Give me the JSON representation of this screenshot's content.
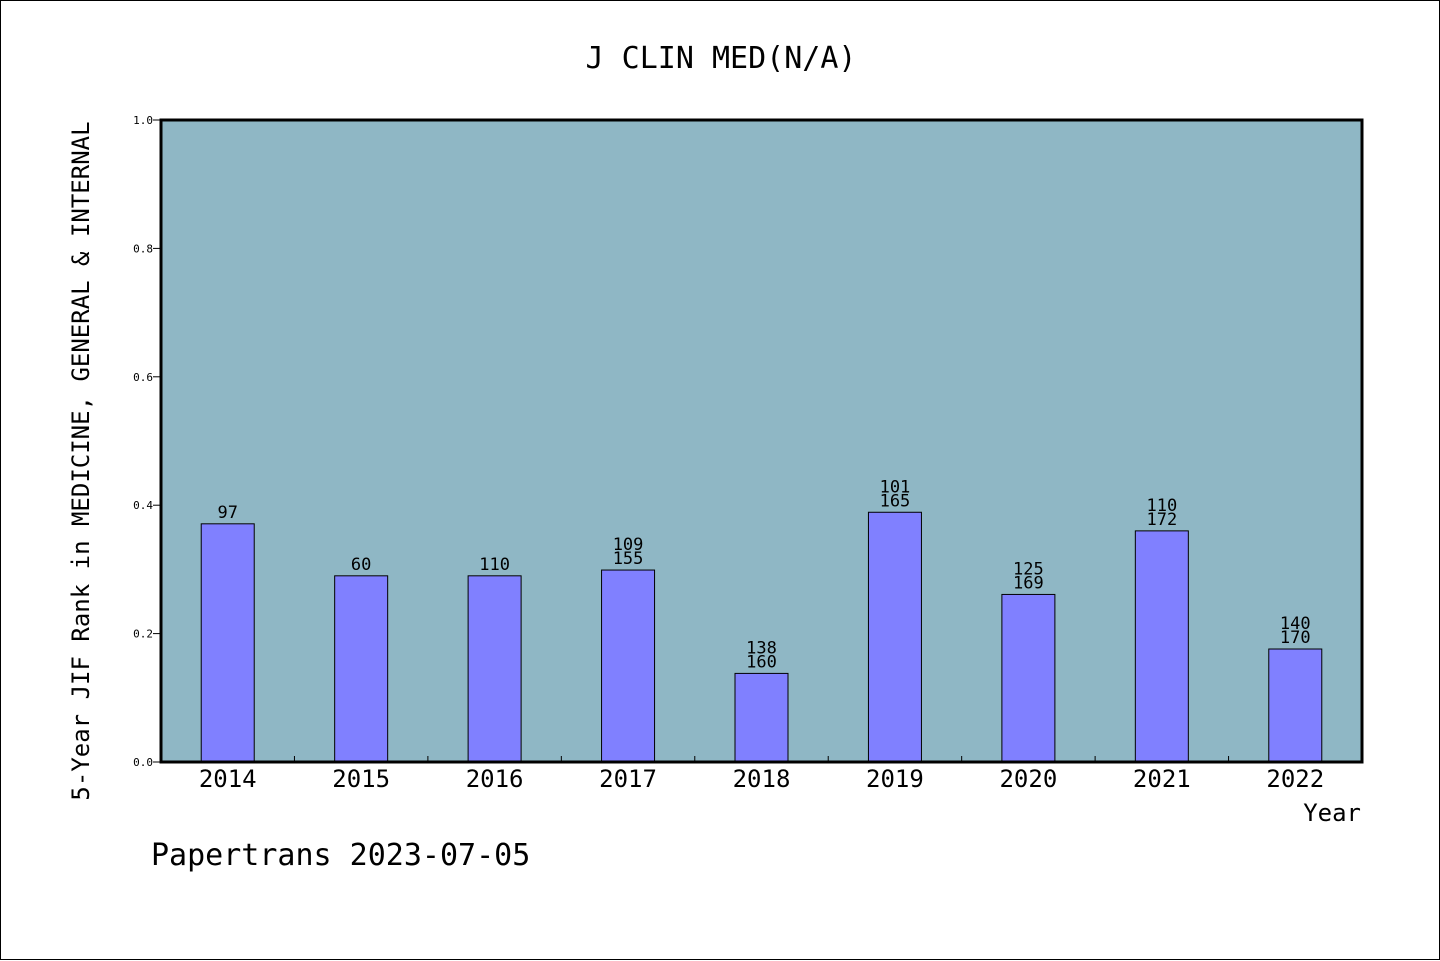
{
  "chart_data": {
    "type": "bar",
    "title": "J CLIN MED(N/A)",
    "xlabel": "Year",
    "ylabel": "5-Year JIF Rank in MEDICINE, GENERAL & INTERNAL",
    "ylim": [
      0.0,
      1.0
    ],
    "yticks": [
      "0.0",
      "0.2",
      "0.4",
      "0.6",
      "0.8",
      "1.0"
    ],
    "categories": [
      "2014",
      "2015",
      "2016",
      "2017",
      "2018",
      "2019",
      "2020",
      "2021",
      "2022"
    ],
    "values": [
      0.371,
      0.29,
      0.29,
      0.299,
      0.138,
      0.389,
      0.261,
      0.36,
      0.176
    ],
    "bar_labels": [
      [
        "97"
      ],
      [
        "60"
      ],
      [
        "110"
      ],
      [
        "109",
        "155"
      ],
      [
        "138",
        "160"
      ],
      [
        "101",
        "165"
      ],
      [
        "125",
        "169"
      ],
      [
        "110",
        "172"
      ],
      [
        "140",
        "170"
      ]
    ],
    "grid": false,
    "colors": {
      "plot_background": "#8fb7c5",
      "bar_fill": "#8080ff",
      "axis": "#000000"
    }
  },
  "footer": {
    "text": "Papertrans 2023-07-05"
  }
}
